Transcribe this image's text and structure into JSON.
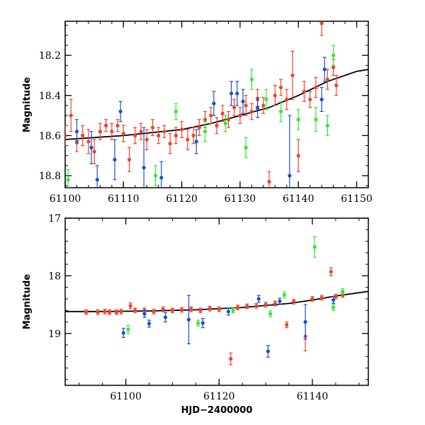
{
  "figure": {
    "description_free": true
  },
  "chart_data": [
    {
      "type": "scatter",
      "panel": "top",
      "title": "",
      "xlabel": "",
      "ylabel": "Magnitude",
      "xlim": [
        61100,
        61152
      ],
      "ylim": [
        18.86,
        18.03
      ],
      "xticks": [
        61100,
        61110,
        61120,
        61130,
        61140,
        61150
      ],
      "xtick_labels": [
        "61100",
        "61110",
        "61120",
        "61130",
        "61140",
        "61150"
      ],
      "yticks": [
        18.2,
        18.4,
        18.6,
        18.8
      ],
      "ytick_labels": [
        "18.2",
        "18.4",
        "18.6",
        "18.8"
      ],
      "colors": {
        "red": "#f0422a",
        "green": "#33e833",
        "blue": "#1a4fd6",
        "model": "#000000"
      },
      "model_curve": {
        "x": [
          61100,
          61105,
          61110,
          61115,
          61120,
          61125,
          61130,
          61135,
          61140,
          61145,
          61150,
          61152
        ],
        "y": [
          18.62,
          18.61,
          18.6,
          18.585,
          18.57,
          18.54,
          18.5,
          18.46,
          18.4,
          18.33,
          18.28,
          18.27
        ]
      },
      "series": [
        {
          "name": "red",
          "color": "#f0422a",
          "points": [
            {
              "x": 61100,
              "y": 18.6,
              "err": 0.05
            },
            {
              "x": 61101,
              "y": 18.5,
              "err": 0.08
            },
            {
              "x": 61102,
              "y": 18.63,
              "err": 0.05
            },
            {
              "x": 61103,
              "y": 18.6,
              "err": 0.05
            },
            {
              "x": 61104,
              "y": 18.63,
              "err": 0.06
            },
            {
              "x": 61105,
              "y": 18.68,
              "err": 0.06
            },
            {
              "x": 61106,
              "y": 18.58,
              "err": 0.04
            },
            {
              "x": 61107,
              "y": 18.55,
              "err": 0.03
            },
            {
              "x": 61108,
              "y": 18.58,
              "err": 0.04
            },
            {
              "x": 61109,
              "y": 18.55,
              "err": 0.03
            },
            {
              "x": 61110,
              "y": 18.59,
              "err": 0.04
            },
            {
              "x": 61111,
              "y": 18.72,
              "err": 0.06
            },
            {
              "x": 61112,
              "y": 18.6,
              "err": 0.04
            },
            {
              "x": 61113,
              "y": 18.58,
              "err": 0.04
            },
            {
              "x": 61114,
              "y": 18.62,
              "err": 0.05
            },
            {
              "x": 61115,
              "y": 18.56,
              "err": 0.04
            },
            {
              "x": 61116,
              "y": 18.6,
              "err": 0.04
            },
            {
              "x": 61117,
              "y": 18.58,
              "err": 0.03
            },
            {
              "x": 61118,
              "y": 18.64,
              "err": 0.05
            },
            {
              "x": 61119,
              "y": 18.6,
              "err": 0.04
            },
            {
              "x": 61120,
              "y": 18.57,
              "err": 0.04
            },
            {
              "x": 61121,
              "y": 18.62,
              "err": 0.05
            },
            {
              "x": 61122,
              "y": 18.6,
              "err": 0.04
            },
            {
              "x": 61123,
              "y": 18.56,
              "err": 0.04
            },
            {
              "x": 61124,
              "y": 18.52,
              "err": 0.04
            },
            {
              "x": 61125,
              "y": 18.5,
              "err": 0.04
            },
            {
              "x": 61126,
              "y": 18.55,
              "err": 0.04
            },
            {
              "x": 61127,
              "y": 18.49,
              "err": 0.04
            },
            {
              "x": 61128,
              "y": 18.52,
              "err": 0.04
            },
            {
              "x": 61129,
              "y": 18.46,
              "err": 0.04
            },
            {
              "x": 61130,
              "y": 18.5,
              "err": 0.04
            },
            {
              "x": 61131,
              "y": 18.45,
              "err": 0.05
            },
            {
              "x": 61132,
              "y": 18.48,
              "err": 0.04
            },
            {
              "x": 61133,
              "y": 18.42,
              "err": 0.05
            },
            {
              "x": 61134,
              "y": 18.45,
              "err": 0.04
            },
            {
              "x": 61135,
              "y": 18.83,
              "err": 0.05
            },
            {
              "x": 61136,
              "y": 18.4,
              "err": 0.05
            },
            {
              "x": 61137,
              "y": 18.36,
              "err": 0.04
            },
            {
              "x": 61138,
              "y": 18.42,
              "err": 0.05
            },
            {
              "x": 61139,
              "y": 18.3,
              "err": 0.12
            },
            {
              "x": 61140,
              "y": 18.7,
              "err": 0.08
            },
            {
              "x": 61141,
              "y": 18.38,
              "err": 0.05
            },
            {
              "x": 61142,
              "y": 18.42,
              "err": 0.04
            },
            {
              "x": 61143,
              "y": 18.36,
              "err": 0.05
            },
            {
              "x": 61144,
              "y": 18.04,
              "err": 0.06
            },
            {
              "x": 61145,
              "y": 18.32,
              "err": 0.05
            },
            {
              "x": 61146,
              "y": 18.26,
              "err": 0.04
            },
            {
              "x": 61146.5,
              "y": 18.35,
              "err": 0.05
            }
          ]
        },
        {
          "name": "green",
          "color": "#33e833",
          "points": [
            {
              "x": 61100.5,
              "y": 18.82,
              "err": 0.05
            },
            {
              "x": 61115.5,
              "y": 18.8,
              "err": 0.05
            },
            {
              "x": 61119,
              "y": 18.48,
              "err": 0.04
            },
            {
              "x": 61124,
              "y": 18.58,
              "err": 0.05
            },
            {
              "x": 61127.5,
              "y": 18.54,
              "err": 0.04
            },
            {
              "x": 61131,
              "y": 18.66,
              "err": 0.05
            },
            {
              "x": 61132,
              "y": 18.32,
              "err": 0.05
            },
            {
              "x": 61134.5,
              "y": 18.42,
              "err": 0.05
            },
            {
              "x": 61137,
              "y": 18.48,
              "err": 0.05
            },
            {
              "x": 61140,
              "y": 18.52,
              "err": 0.05
            },
            {
              "x": 61143,
              "y": 18.52,
              "err": 0.06
            },
            {
              "x": 61145,
              "y": 18.55,
              "err": 0.05
            },
            {
              "x": 61146,
              "y": 18.2,
              "err": 0.05
            }
          ]
        },
        {
          "name": "blue",
          "color": "#1a4fd6",
          "points": [
            {
              "x": 61102,
              "y": 18.58,
              "err": 0.06
            },
            {
              "x": 61104.5,
              "y": 18.66,
              "err": 0.08
            },
            {
              "x": 61105.5,
              "y": 18.82,
              "err": 0.07
            },
            {
              "x": 61108.5,
              "y": 18.72,
              "err": 0.1
            },
            {
              "x": 61109.5,
              "y": 18.48,
              "err": 0.05
            },
            {
              "x": 61113.5,
              "y": 18.76,
              "err": 0.2
            },
            {
              "x": 61116.5,
              "y": 18.81,
              "err": 0.08
            },
            {
              "x": 61122.5,
              "y": 18.63,
              "err": 0.06
            },
            {
              "x": 61125.5,
              "y": 18.44,
              "err": 0.06
            },
            {
              "x": 61128.5,
              "y": 18.39,
              "err": 0.06
            },
            {
              "x": 61129.5,
              "y": 18.39,
              "err": 0.06
            },
            {
              "x": 61130.5,
              "y": 18.43,
              "err": 0.06
            },
            {
              "x": 61133,
              "y": 18.46,
              "err": 0.05
            },
            {
              "x": 61138.5,
              "y": 18.8,
              "err": 0.3
            },
            {
              "x": 61144,
              "y": 18.42,
              "err": 0.06
            },
            {
              "x": 61144.5,
              "y": 18.27,
              "err": 0.06
            }
          ]
        }
      ]
    },
    {
      "type": "scatter",
      "panel": "bottom",
      "title": "",
      "xlabel": "HJD−2400000",
      "ylabel": "Magnitude",
      "xlim": [
        61087,
        61152
      ],
      "ylim": [
        19.9,
        17.0
      ],
      "xticks": [
        61100,
        61120,
        61140
      ],
      "xtick_labels": [
        "61100",
        "61120",
        "61140"
      ],
      "yticks": [
        17,
        18,
        19
      ],
      "ytick_labels": [
        "17",
        "18",
        "19"
      ],
      "colors": {
        "red": "#f0422a",
        "green": "#33e833",
        "blue": "#1a4fd6",
        "model": "#000000"
      },
      "model_curve": {
        "x": [
          61087,
          61095,
          61105,
          61115,
          61125,
          61135,
          61140,
          61145,
          61152
        ],
        "y": [
          18.62,
          18.62,
          18.61,
          18.59,
          18.55,
          18.48,
          18.42,
          18.35,
          18.27
        ]
      },
      "series": [
        {
          "name": "red",
          "color": "#f0422a",
          "points": [
            {
              "x": 61091.5,
              "y": 18.63,
              "err": 0.04
            },
            {
              "x": 61094,
              "y": 18.63,
              "err": 0.04
            },
            {
              "x": 61095.5,
              "y": 18.62,
              "err": 0.04
            },
            {
              "x": 61096.5,
              "y": 18.63,
              "err": 0.04
            },
            {
              "x": 61098,
              "y": 18.63,
              "err": 0.04
            },
            {
              "x": 61099,
              "y": 18.62,
              "err": 0.04
            },
            {
              "x": 61101,
              "y": 18.52,
              "err": 0.05
            },
            {
              "x": 61102,
              "y": 18.6,
              "err": 0.04
            },
            {
              "x": 61104,
              "y": 18.6,
              "err": 0.04
            },
            {
              "x": 61106,
              "y": 18.62,
              "err": 0.04
            },
            {
              "x": 61108,
              "y": 18.58,
              "err": 0.04
            },
            {
              "x": 61110,
              "y": 18.6,
              "err": 0.04
            },
            {
              "x": 61112,
              "y": 18.59,
              "err": 0.04
            },
            {
              "x": 61114,
              "y": 18.58,
              "err": 0.04
            },
            {
              "x": 61116,
              "y": 18.6,
              "err": 0.04
            },
            {
              "x": 61118,
              "y": 18.57,
              "err": 0.04
            },
            {
              "x": 61120,
              "y": 18.58,
              "err": 0.04
            },
            {
              "x": 61122.5,
              "y": 19.44,
              "err": 0.1
            },
            {
              "x": 61124,
              "y": 18.55,
              "err": 0.04
            },
            {
              "x": 61126,
              "y": 18.53,
              "err": 0.04
            },
            {
              "x": 61128,
              "y": 18.52,
              "err": 0.04
            },
            {
              "x": 61130,
              "y": 18.5,
              "err": 0.04
            },
            {
              "x": 61132,
              "y": 18.48,
              "err": 0.04
            },
            {
              "x": 61134.5,
              "y": 18.85,
              "err": 0.05
            },
            {
              "x": 61136,
              "y": 18.45,
              "err": 0.04
            },
            {
              "x": 61138.5,
              "y": 19.05,
              "err": 0.25
            },
            {
              "x": 61140,
              "y": 18.4,
              "err": 0.04
            },
            {
              "x": 61142,
              "y": 18.38,
              "err": 0.04
            },
            {
              "x": 61144,
              "y": 17.93,
              "err": 0.07
            },
            {
              "x": 61145,
              "y": 18.36,
              "err": 0.04
            },
            {
              "x": 61146.5,
              "y": 18.33,
              "err": 0.04
            }
          ]
        },
        {
          "name": "green",
          "color": "#33e833",
          "points": [
            {
              "x": 61100.5,
              "y": 18.93,
              "err": 0.07
            },
            {
              "x": 61115.5,
              "y": 18.82,
              "err": 0.05
            },
            {
              "x": 61123,
              "y": 18.6,
              "err": 0.04
            },
            {
              "x": 61131,
              "y": 18.66,
              "err": 0.05
            },
            {
              "x": 61134,
              "y": 18.33,
              "err": 0.05
            },
            {
              "x": 61140.5,
              "y": 17.5,
              "err": 0.18
            },
            {
              "x": 61144.5,
              "y": 18.55,
              "err": 0.05
            },
            {
              "x": 61146.5,
              "y": 18.27,
              "err": 0.05
            }
          ]
        },
        {
          "name": "blue",
          "color": "#1a4fd6",
          "points": [
            {
              "x": 61099.5,
              "y": 18.99,
              "err": 0.08
            },
            {
              "x": 61104,
              "y": 18.66,
              "err": 0.06
            },
            {
              "x": 61105,
              "y": 18.83,
              "err": 0.06
            },
            {
              "x": 61108.5,
              "y": 18.72,
              "err": 0.08
            },
            {
              "x": 61113.5,
              "y": 18.76,
              "err": 0.42
            },
            {
              "x": 61116.5,
              "y": 18.82,
              "err": 0.08
            },
            {
              "x": 61122,
              "y": 18.62,
              "err": 0.06
            },
            {
              "x": 61128.5,
              "y": 18.4,
              "err": 0.06
            },
            {
              "x": 61130.5,
              "y": 19.31,
              "err": 0.1
            },
            {
              "x": 61133,
              "y": 18.44,
              "err": 0.05
            },
            {
              "x": 61138.5,
              "y": 18.8,
              "err": 0.3
            },
            {
              "x": 61144.5,
              "y": 18.42,
              "err": 0.06
            }
          ]
        }
      ]
    }
  ]
}
